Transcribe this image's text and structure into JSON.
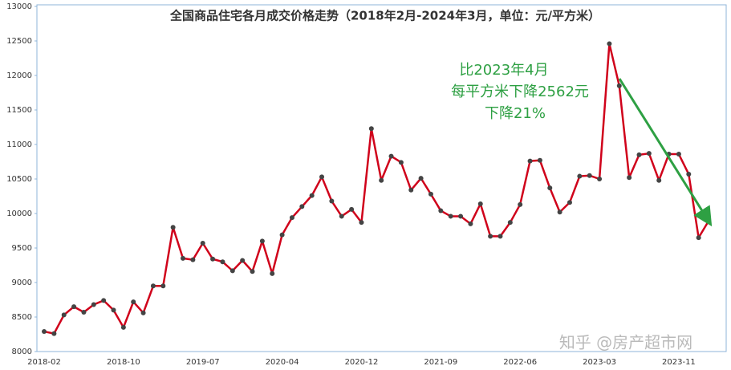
{
  "chart_data": {
    "type": "line",
    "title": "全国商品住宅各月成交价格走势（2018年2月-2024年3月，单位：元/平方米）",
    "annotation": [
      "比2023年4月",
      "每平方米下降2562元",
      "下降21%"
    ],
    "watermark": "知乎 @房产超市网",
    "categories": [
      "2018-02",
      null,
      null,
      null,
      null,
      null,
      null,
      null,
      "2018-10",
      null,
      null,
      null,
      null,
      null,
      null,
      null,
      "2019-07",
      null,
      null,
      null,
      null,
      null,
      null,
      null,
      "2020-04",
      null,
      null,
      null,
      null,
      null,
      null,
      null,
      "2020-12",
      null,
      null,
      null,
      null,
      null,
      null,
      null,
      "2021-09",
      null,
      null,
      null,
      null,
      null,
      null,
      null,
      "2022-06",
      null,
      null,
      null,
      null,
      null,
      null,
      null,
      "2023-03",
      null,
      null,
      null,
      null,
      null,
      null,
      null,
      "2023-11",
      null,
      null,
      null
    ],
    "series": [
      {
        "name": "成交价格",
        "color": "#d0021b",
        "marker_color": "#444444",
        "values": [
          8290,
          8260,
          8530,
          8650,
          8570,
          8680,
          8740,
          8600,
          8350,
          8720,
          8560,
          8950,
          8950,
          9800,
          9350,
          9330,
          9570,
          9340,
          9300,
          9170,
          9320,
          9160,
          9600,
          9130,
          9690,
          9940,
          10100,
          10260,
          10530,
          10180,
          9960,
          10060,
          9870,
          11230,
          10480,
          10830,
          10740,
          10340,
          10510,
          10280,
          10040,
          9960,
          9960,
          9850,
          10140,
          9670,
          9670,
          9870,
          10130,
          10760,
          10770,
          10370,
          10020,
          10160,
          10540,
          10550,
          10500,
          12460,
          11850,
          10520,
          10850,
          10870,
          10480,
          10860,
          10860,
          10570,
          9650,
          9890
        ]
      }
    ],
    "ylim": [
      8000,
      13000
    ],
    "yticks": [
      8000,
      8500,
      9000,
      9500,
      10000,
      10500,
      11000,
      11500,
      12000,
      12500,
      13000
    ],
    "grid": false
  }
}
